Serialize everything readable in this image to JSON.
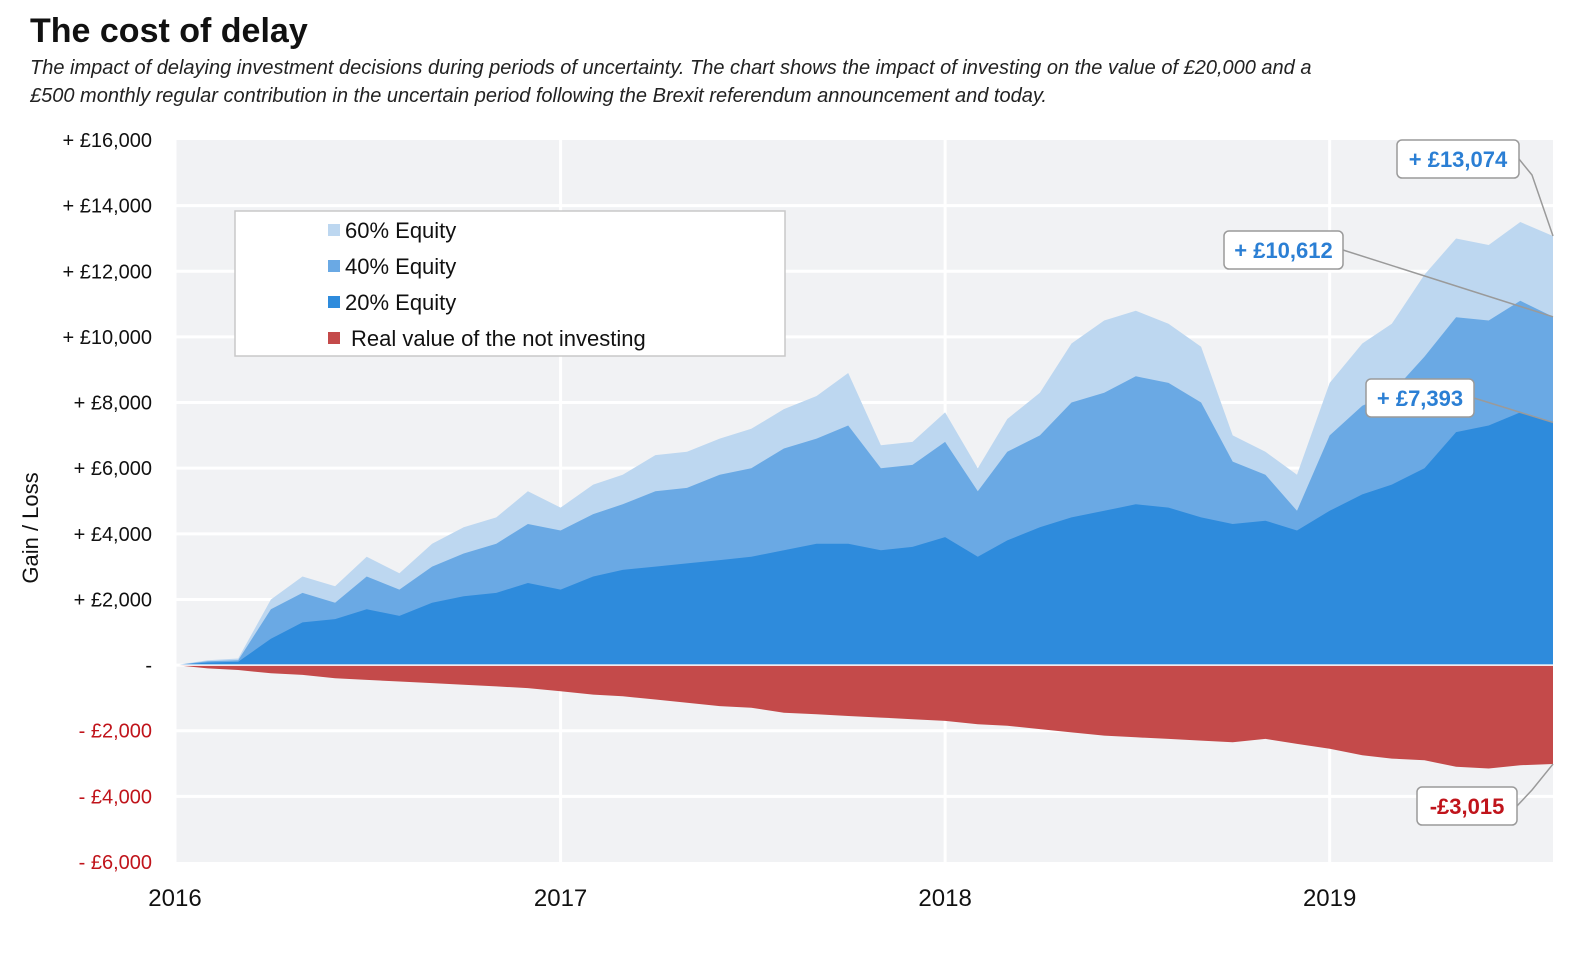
{
  "header": {
    "title": "The cost of delay",
    "subtitle": "The impact of delaying investment decisions during periods of uncertainty. The chart shows the impact of investing on the value of £20,000 and a £500 monthly regular contribution in the uncertain period following the Brexit referendum announcement and today."
  },
  "colors": {
    "equity60": "#bdd7f0",
    "equity40": "#6aa9e4",
    "equity20": "#2e8bdc",
    "cash": "#c44a4a",
    "positive_label": "#2b7fd4",
    "negative_label": "#c0141b",
    "plot_bg": "#f1f2f4",
    "grid": "#ffffff"
  },
  "chart_data": {
    "type": "area",
    "title": "The cost of delay",
    "xlabel": "",
    "ylabel": "Gain / Loss",
    "xlim": [
      "2016-01-01",
      "2019-08-01"
    ],
    "ylim": [
      -6000,
      16000
    ],
    "grid": true,
    "legend_position": "top-left",
    "x_ticks": [
      "2016",
      "2017",
      "2018",
      "2019"
    ],
    "y_ticks": [
      {
        "value": 16000,
        "label": "+ £16,000"
      },
      {
        "value": 14000,
        "label": "+ £14,000"
      },
      {
        "value": 12000,
        "label": "+ £12,000"
      },
      {
        "value": 10000,
        "label": "+ £10,000"
      },
      {
        "value": 8000,
        "label": "+ £8,000"
      },
      {
        "value": 6000,
        "label": "+ £6,000"
      },
      {
        "value": 4000,
        "label": "+ £4,000"
      },
      {
        "value": 2000,
        "label": "+ £2,000"
      },
      {
        "value": 0,
        "label": "-"
      },
      {
        "value": -2000,
        "label": "- £2,000"
      },
      {
        "value": -4000,
        "label": "- £4,000"
      },
      {
        "value": -6000,
        "label": "- £6,000"
      }
    ],
    "x": [
      "2016-01",
      "2016-02",
      "2016-03",
      "2016-04",
      "2016-05",
      "2016-06",
      "2016-07",
      "2016-08",
      "2016-09",
      "2016-10",
      "2016-11",
      "2016-12",
      "2017-01",
      "2017-02",
      "2017-03",
      "2017-04",
      "2017-05",
      "2017-06",
      "2017-07",
      "2017-08",
      "2017-09",
      "2017-10",
      "2017-11",
      "2017-12",
      "2018-01",
      "2018-02",
      "2018-03",
      "2018-04",
      "2018-05",
      "2018-06",
      "2018-07",
      "2018-08",
      "2018-09",
      "2018-10",
      "2018-11",
      "2018-12",
      "2019-01",
      "2019-02",
      "2019-03",
      "2019-04",
      "2019-05",
      "2019-06",
      "2019-07",
      "2019-08"
    ],
    "series": [
      {
        "name": "60% Equity",
        "color": "#bdd7f0",
        "values": [
          0,
          150,
          200,
          2000,
          2700,
          2400,
          3300,
          2800,
          3700,
          4200,
          4500,
          5300,
          4800,
          5500,
          5800,
          6400,
          6500,
          6900,
          7200,
          7800,
          8200,
          8900,
          6700,
          6800,
          7700,
          6000,
          7500,
          8300,
          9800,
          10500,
          10800,
          10400,
          9700,
          7000,
          6500,
          5800,
          8600,
          9800,
          10400,
          11900,
          13000,
          12800,
          13500,
          13074
        ]
      },
      {
        "name": "40% Equity",
        "color": "#6aa9e4",
        "values": [
          0,
          120,
          150,
          1700,
          2200,
          1900,
          2700,
          2300,
          3000,
          3400,
          3700,
          4300,
          4100,
          4600,
          4900,
          5300,
          5400,
          5800,
          6000,
          6600,
          6900,
          7300,
          6000,
          6100,
          6800,
          5300,
          6500,
          7000,
          8000,
          8300,
          8800,
          8600,
          8000,
          6200,
          5800,
          4700,
          7000,
          7900,
          8300,
          9400,
          10600,
          10500,
          11100,
          10612
        ]
      },
      {
        "name": "20% Equity",
        "color": "#2e8bdc",
        "values": [
          0,
          80,
          100,
          800,
          1300,
          1400,
          1700,
          1500,
          1900,
          2100,
          2200,
          2500,
          2300,
          2700,
          2900,
          3000,
          3100,
          3200,
          3300,
          3500,
          3700,
          3700,
          3500,
          3600,
          3900,
          3300,
          3800,
          4200,
          4500,
          4700,
          4900,
          4800,
          4500,
          4300,
          4400,
          4100,
          4700,
          5200,
          5500,
          6000,
          7100,
          7300,
          7700,
          7393
        ]
      },
      {
        "name": "Real value of the not investing",
        "color": "#c44a4a",
        "values": [
          0,
          -100,
          -150,
          -250,
          -300,
          -400,
          -450,
          -500,
          -550,
          -600,
          -650,
          -700,
          -800,
          -900,
          -950,
          -1050,
          -1150,
          -1250,
          -1300,
          -1450,
          -1500,
          -1550,
          -1600,
          -1650,
          -1700,
          -1800,
          -1850,
          -1950,
          -2050,
          -2150,
          -2200,
          -2250,
          -2300,
          -2350,
          -2250,
          -2400,
          -2550,
          -2750,
          -2850,
          -2900,
          -3100,
          -3150,
          -3050,
          -3015
        ]
      }
    ],
    "callouts": [
      {
        "series": "60% Equity",
        "label": "+ £13,074",
        "value": 13074,
        "tone": "positive"
      },
      {
        "series": "40% Equity",
        "label": "+ £10,612",
        "value": 10612,
        "tone": "positive"
      },
      {
        "series": "20% Equity",
        "label": "+ £7,393",
        "value": 7393,
        "tone": "positive"
      },
      {
        "series": "Real value of the not investing",
        "label": "-£3,015",
        "value": -3015,
        "tone": "negative"
      }
    ]
  }
}
